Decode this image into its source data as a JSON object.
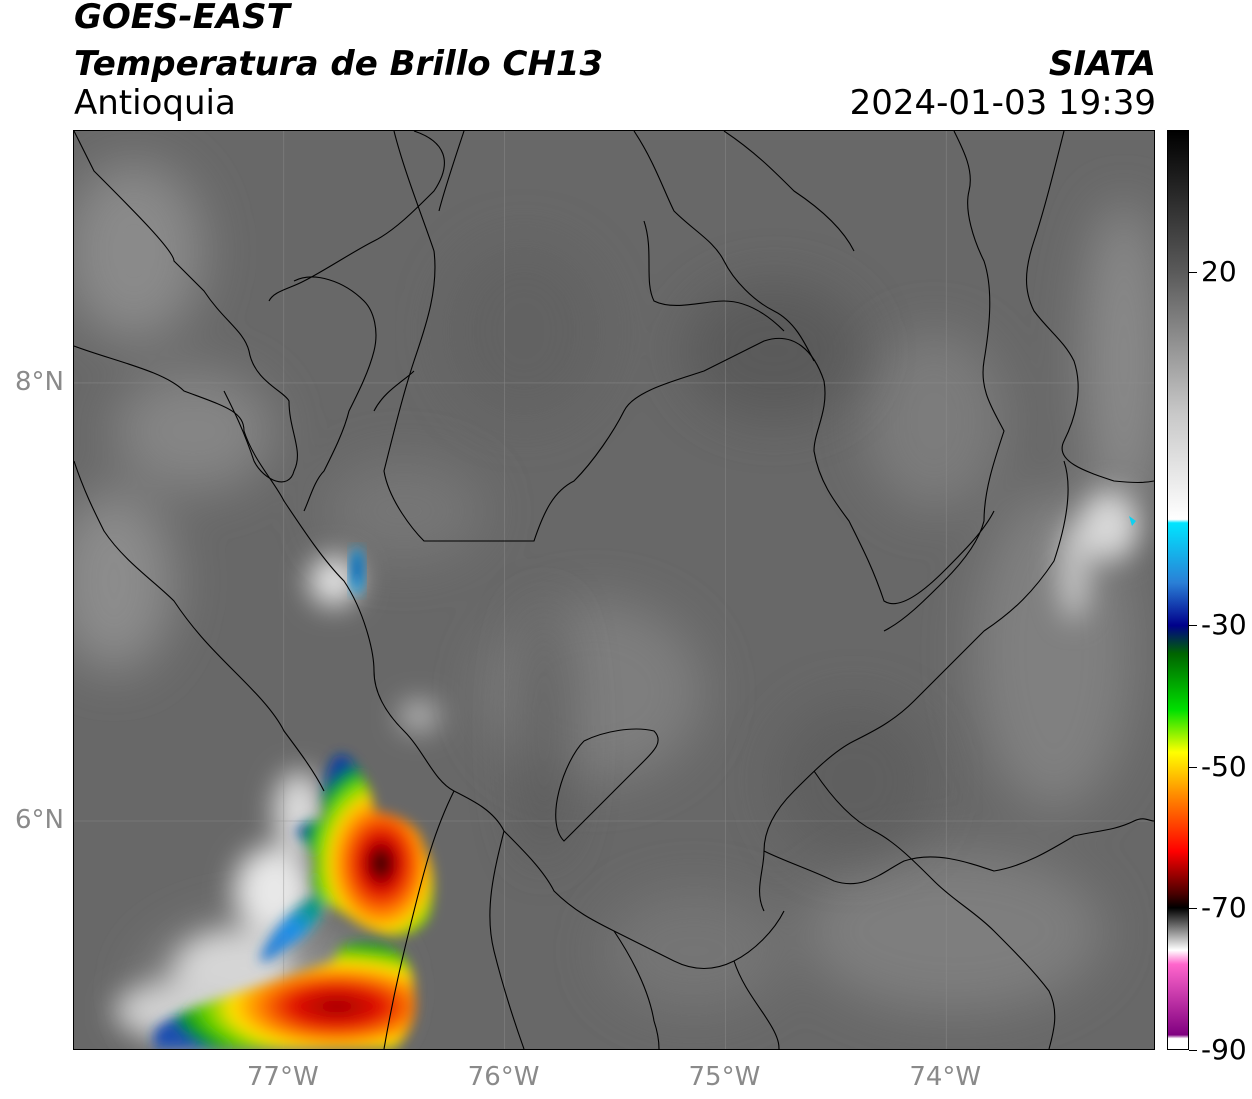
{
  "header": {
    "satellite": "GOES-EAST",
    "product": "Temperatura de Brillo CH13",
    "region": "Antioquia",
    "organization": "SIATA",
    "datetime": "2024-01-03 19:39"
  },
  "map": {
    "extent": {
      "lon_min": -77.95,
      "lon_max": -73.05,
      "lat_min": 4.95,
      "lat_max": 9.15
    },
    "lat_ticks": [
      {
        "value": 8,
        "label": "8°N"
      },
      {
        "value": 6,
        "label": "6°N"
      }
    ],
    "lon_ticks": [
      {
        "value": -77,
        "label": "77°W"
      },
      {
        "value": -76,
        "label": "76°W"
      },
      {
        "value": -75,
        "label": "75°W"
      },
      {
        "value": -74,
        "label": "74°W"
      }
    ],
    "gridlines": true,
    "background_color": "#6a6a6a",
    "cold_cloud_features": [
      {
        "name": "convective-cell-south",
        "lon": -76.5,
        "lat": 5.75,
        "min_temp": -72
      },
      {
        "name": "convective-cell-southwest",
        "lon": -76.6,
        "lat": 5.2,
        "min_temp": -65
      },
      {
        "name": "cloud-north-uraba",
        "lon": -76.7,
        "lat": 7.2,
        "min_temp": -30
      },
      {
        "name": "cloud-east-edge",
        "lon": -73.1,
        "lat": 7.55,
        "min_temp": -25
      }
    ]
  },
  "colorbar": {
    "range": [
      -90,
      40
    ],
    "ticks": [
      {
        "value": 20,
        "label": "20"
      },
      {
        "value": -30,
        "label": "-30"
      },
      {
        "value": -50,
        "label": "-50"
      },
      {
        "value": -70,
        "label": "-70"
      },
      {
        "value": -90,
        "label": "-90"
      }
    ],
    "color_stops": [
      {
        "value": 40,
        "color": "#000000"
      },
      {
        "value": 20,
        "color": "#5a5a5a"
      },
      {
        "value": 0,
        "color": "#c8c8c8"
      },
      {
        "value": -15,
        "color": "#ffffff"
      },
      {
        "value": -15.5,
        "color": "#00e5ff"
      },
      {
        "value": -24,
        "color": "#2a7fd6"
      },
      {
        "value": -30,
        "color": "#00008b"
      },
      {
        "value": -34,
        "color": "#006400"
      },
      {
        "value": -42,
        "color": "#00e000"
      },
      {
        "value": -48,
        "color": "#ffff00"
      },
      {
        "value": -54,
        "color": "#ff8c00"
      },
      {
        "value": -62,
        "color": "#ff0000"
      },
      {
        "value": -68,
        "color": "#4a0000"
      },
      {
        "value": -70,
        "color": "#000000"
      },
      {
        "value": -76,
        "color": "#ffffff"
      },
      {
        "value": -78,
        "color": "#ff66cc"
      },
      {
        "value": -88,
        "color": "#800080"
      },
      {
        "value": -88.5,
        "color": "#ffffff"
      }
    ]
  }
}
